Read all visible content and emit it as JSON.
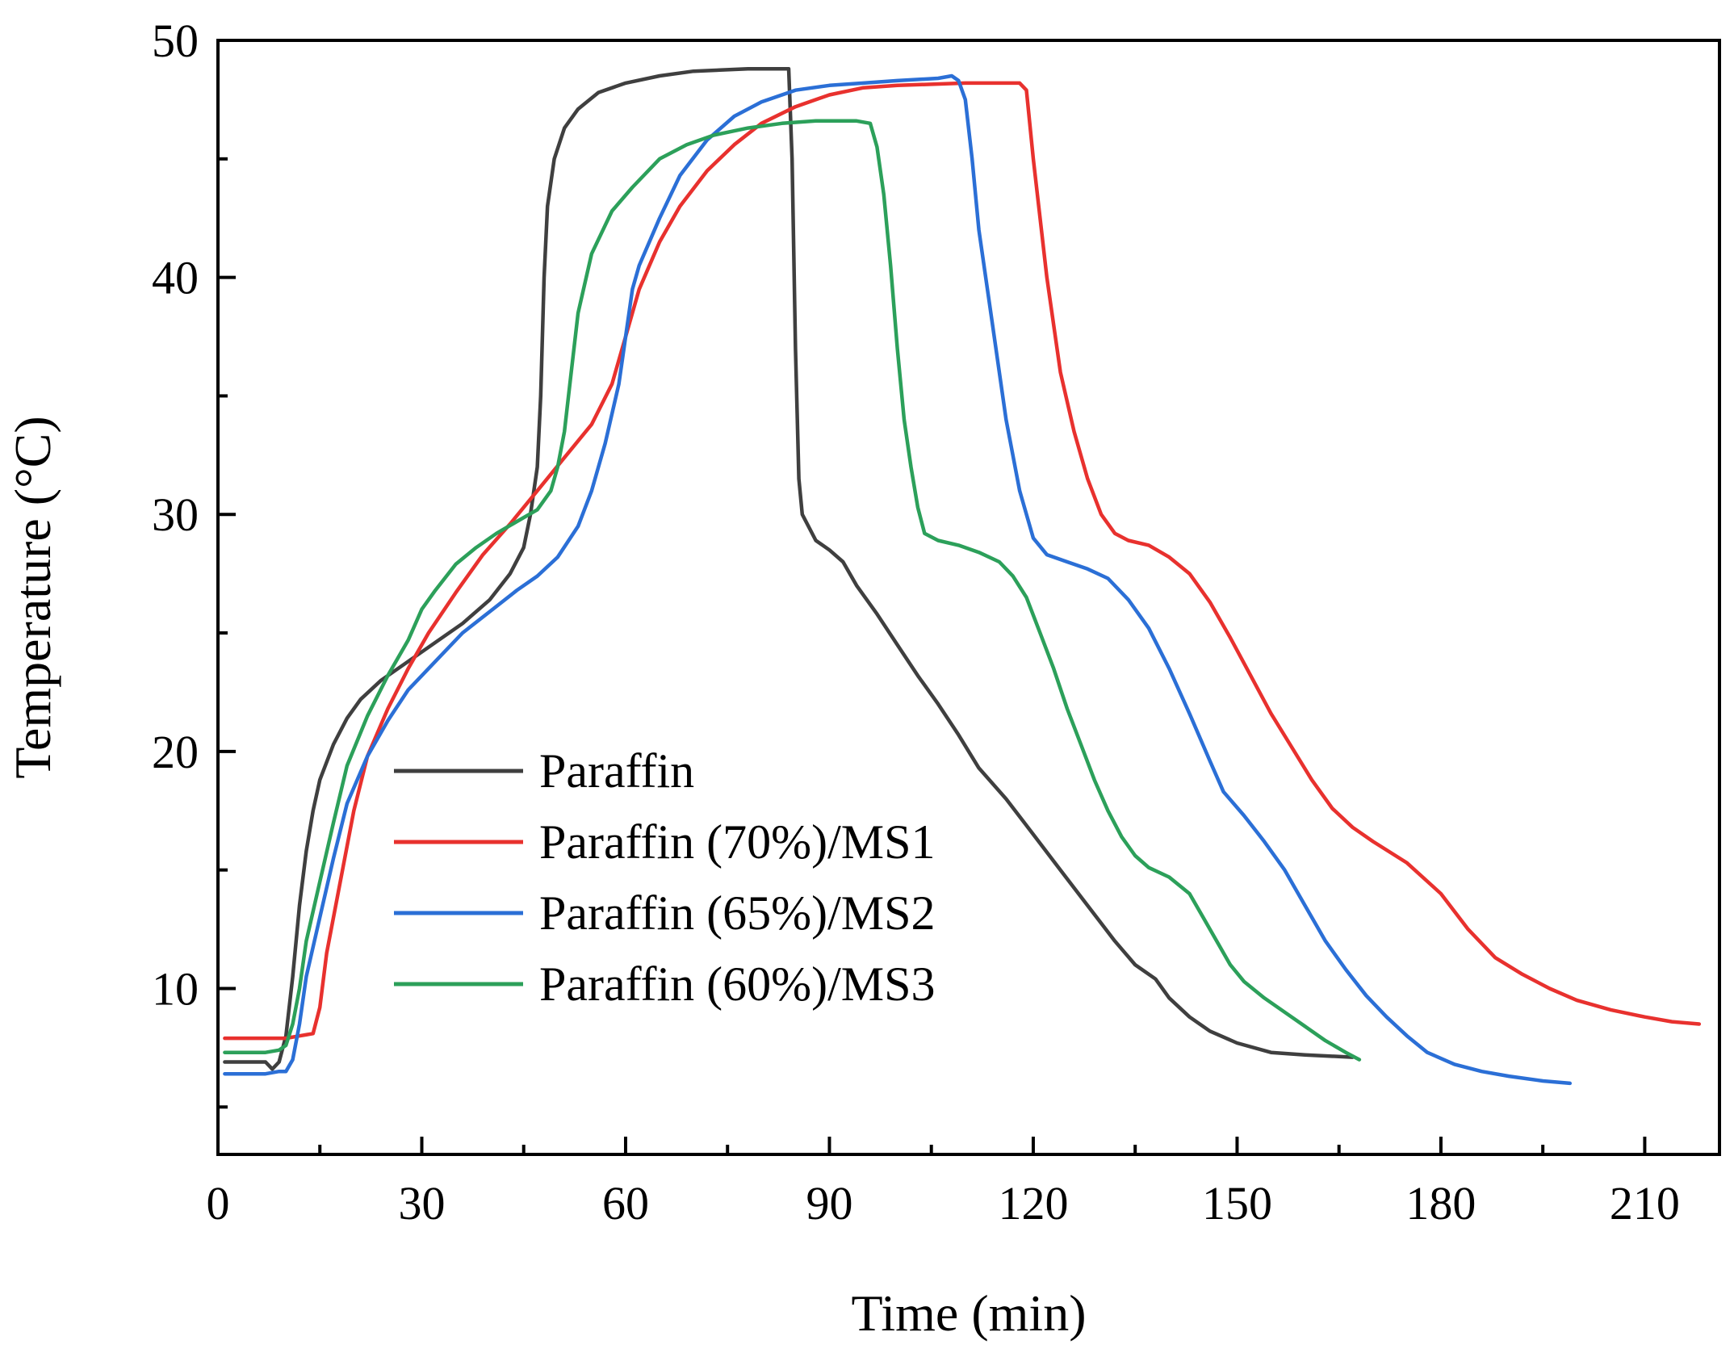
{
  "chart_data": {
    "type": "line",
    "title": "",
    "xlabel": "Time (min)",
    "ylabel": "Temperature (°C)",
    "xlim": [
      0,
      221
    ],
    "ylim": [
      3,
      50
    ],
    "xticks": [
      0,
      30,
      60,
      90,
      120,
      150,
      180,
      210
    ],
    "yticks": [
      10,
      20,
      30,
      40,
      50
    ],
    "x_minor_step": 15,
    "y_minor_step": 5,
    "grid": false,
    "legend_position": "lower-left",
    "series": [
      {
        "name": "Paraffin",
        "color": "#3f3f3f",
        "points": [
          [
            1,
            6.9
          ],
          [
            7,
            6.9
          ],
          [
            8,
            6.6
          ],
          [
            9,
            6.9
          ],
          [
            10,
            8
          ],
          [
            11,
            10.5
          ],
          [
            12,
            13.5
          ],
          [
            13,
            15.8
          ],
          [
            14,
            17.5
          ],
          [
            15,
            18.8
          ],
          [
            17,
            20.3
          ],
          [
            19,
            21.4
          ],
          [
            21,
            22.2
          ],
          [
            24,
            23
          ],
          [
            28,
            23.8
          ],
          [
            32,
            24.6
          ],
          [
            36,
            25.4
          ],
          [
            40,
            26.4
          ],
          [
            43,
            27.5
          ],
          [
            45,
            28.6
          ],
          [
            46,
            30
          ],
          [
            47,
            32
          ],
          [
            47.5,
            35
          ],
          [
            48,
            40
          ],
          [
            48.5,
            43
          ],
          [
            49.5,
            45
          ],
          [
            51,
            46.3
          ],
          [
            53,
            47.1
          ],
          [
            56,
            47.8
          ],
          [
            60,
            48.2
          ],
          [
            65,
            48.5
          ],
          [
            70,
            48.7
          ],
          [
            78,
            48.8
          ],
          [
            84,
            48.8
          ],
          [
            84.5,
            45
          ],
          [
            85,
            37
          ],
          [
            85.5,
            31.5
          ],
          [
            86,
            30
          ],
          [
            88,
            28.9
          ],
          [
            90,
            28.5
          ],
          [
            92,
            28
          ],
          [
            94,
            27
          ],
          [
            97,
            25.8
          ],
          [
            100,
            24.5
          ],
          [
            103,
            23.2
          ],
          [
            106,
            22
          ],
          [
            109,
            20.7
          ],
          [
            112,
            19.3
          ],
          [
            116,
            18
          ],
          [
            120,
            16.5
          ],
          [
            124,
            15
          ],
          [
            128,
            13.5
          ],
          [
            132,
            12
          ],
          [
            135,
            11
          ],
          [
            138,
            10.4
          ],
          [
            140,
            9.6
          ],
          [
            143,
            8.8
          ],
          [
            146,
            8.2
          ],
          [
            150,
            7.7
          ],
          [
            155,
            7.3
          ],
          [
            160,
            7.2
          ],
          [
            167,
            7.1
          ]
        ]
      },
      {
        "name": "Paraffin (70%)/MS1",
        "color": "#e8312e",
        "points": [
          [
            1,
            7.9
          ],
          [
            7,
            7.9
          ],
          [
            9,
            7.9
          ],
          [
            10,
            7.9
          ],
          [
            12,
            8
          ],
          [
            14,
            8.1
          ],
          [
            15,
            9.2
          ],
          [
            16,
            11.5
          ],
          [
            18,
            14.5
          ],
          [
            20,
            17.5
          ],
          [
            22,
            19.8
          ],
          [
            25,
            21.8
          ],
          [
            28,
            23.5
          ],
          [
            31,
            25
          ],
          [
            35,
            26.7
          ],
          [
            39,
            28.3
          ],
          [
            43,
            29.6
          ],
          [
            47,
            31
          ],
          [
            51,
            32.4
          ],
          [
            55,
            33.8
          ],
          [
            58,
            35.5
          ],
          [
            60,
            37.5
          ],
          [
            62,
            39.5
          ],
          [
            65,
            41.5
          ],
          [
            68,
            43
          ],
          [
            72,
            44.5
          ],
          [
            76,
            45.6
          ],
          [
            80,
            46.5
          ],
          [
            85,
            47.2
          ],
          [
            90,
            47.7
          ],
          [
            95,
            48
          ],
          [
            100,
            48.1
          ],
          [
            110,
            48.2
          ],
          [
            118,
            48.2
          ],
          [
            119,
            47.9
          ],
          [
            120,
            45
          ],
          [
            122,
            40
          ],
          [
            124,
            36
          ],
          [
            126,
            33.5
          ],
          [
            128,
            31.5
          ],
          [
            130,
            30
          ],
          [
            132,
            29.2
          ],
          [
            134,
            28.9
          ],
          [
            137,
            28.7
          ],
          [
            140,
            28.2
          ],
          [
            143,
            27.5
          ],
          [
            146,
            26.3
          ],
          [
            149,
            24.8
          ],
          [
            152,
            23.2
          ],
          [
            155,
            21.6
          ],
          [
            158,
            20.2
          ],
          [
            161,
            18.8
          ],
          [
            164,
            17.6
          ],
          [
            167,
            16.8
          ],
          [
            170,
            16.2
          ],
          [
            175,
            15.3
          ],
          [
            180,
            14
          ],
          [
            184,
            12.5
          ],
          [
            188,
            11.3
          ],
          [
            192,
            10.6
          ],
          [
            196,
            10
          ],
          [
            200,
            9.5
          ],
          [
            205,
            9.1
          ],
          [
            210,
            8.8
          ],
          [
            214,
            8.6
          ],
          [
            218,
            8.5
          ]
        ]
      },
      {
        "name": "Paraffin (65%)/MS2",
        "color": "#2b6fd6",
        "points": [
          [
            1,
            6.4
          ],
          [
            7,
            6.4
          ],
          [
            9,
            6.5
          ],
          [
            10,
            6.5
          ],
          [
            11,
            7
          ],
          [
            12,
            8.5
          ],
          [
            13,
            10.5
          ],
          [
            15,
            13
          ],
          [
            17,
            15.5
          ],
          [
            19,
            17.8
          ],
          [
            22,
            19.8
          ],
          [
            25,
            21.3
          ],
          [
            28,
            22.6
          ],
          [
            32,
            23.8
          ],
          [
            36,
            25
          ],
          [
            40,
            25.9
          ],
          [
            44,
            26.8
          ],
          [
            47,
            27.4
          ],
          [
            50,
            28.2
          ],
          [
            53,
            29.5
          ],
          [
            55,
            31
          ],
          [
            57,
            33
          ],
          [
            59,
            35.5
          ],
          [
            60,
            37.5
          ],
          [
            61,
            39.5
          ],
          [
            62,
            40.5
          ],
          [
            65,
            42.5
          ],
          [
            68,
            44.3
          ],
          [
            72,
            45.8
          ],
          [
            76,
            46.8
          ],
          [
            80,
            47.4
          ],
          [
            85,
            47.9
          ],
          [
            90,
            48.1
          ],
          [
            95,
            48.2
          ],
          [
            100,
            48.3
          ],
          [
            106,
            48.4
          ],
          [
            108,
            48.5
          ],
          [
            109,
            48.3
          ],
          [
            110,
            47.5
          ],
          [
            111,
            45
          ],
          [
            112,
            42
          ],
          [
            114,
            38
          ],
          [
            116,
            34
          ],
          [
            118,
            31
          ],
          [
            120,
            29
          ],
          [
            122,
            28.3
          ],
          [
            125,
            28
          ],
          [
            128,
            27.7
          ],
          [
            131,
            27.3
          ],
          [
            134,
            26.4
          ],
          [
            137,
            25.2
          ],
          [
            140,
            23.5
          ],
          [
            143,
            21.6
          ],
          [
            146,
            19.6
          ],
          [
            148,
            18.3
          ],
          [
            151,
            17.3
          ],
          [
            154,
            16.2
          ],
          [
            157,
            15
          ],
          [
            160,
            13.5
          ],
          [
            163,
            12
          ],
          [
            166,
            10.8
          ],
          [
            169,
            9.7
          ],
          [
            172,
            8.8
          ],
          [
            175,
            8
          ],
          [
            178,
            7.3
          ],
          [
            182,
            6.8
          ],
          [
            186,
            6.5
          ],
          [
            190,
            6.3
          ],
          [
            195,
            6.1
          ],
          [
            199,
            6
          ]
        ]
      },
      {
        "name": "Paraffin (60%)/MS3",
        "color": "#2ca05a",
        "points": [
          [
            1,
            7.3
          ],
          [
            7,
            7.3
          ],
          [
            9,
            7.4
          ],
          [
            10,
            7.6
          ],
          [
            11,
            8.5
          ],
          [
            12,
            10
          ],
          [
            13,
            12
          ],
          [
            15,
            14.5
          ],
          [
            17,
            17
          ],
          [
            19,
            19.4
          ],
          [
            22,
            21.5
          ],
          [
            25,
            23.2
          ],
          [
            28,
            24.7
          ],
          [
            30,
            26
          ],
          [
            32,
            26.8
          ],
          [
            35,
            27.9
          ],
          [
            38,
            28.6
          ],
          [
            41,
            29.2
          ],
          [
            44,
            29.7
          ],
          [
            47,
            30.2
          ],
          [
            49,
            31
          ],
          [
            50,
            32
          ],
          [
            51,
            33.5
          ],
          [
            52,
            36
          ],
          [
            53,
            38.5
          ],
          [
            55,
            41
          ],
          [
            58,
            42.8
          ],
          [
            61,
            43.8
          ],
          [
            65,
            45
          ],
          [
            69,
            45.6
          ],
          [
            73,
            46
          ],
          [
            78,
            46.3
          ],
          [
            83,
            46.5
          ],
          [
            88,
            46.6
          ],
          [
            94,
            46.6
          ],
          [
            96,
            46.5
          ],
          [
            97,
            45.5
          ],
          [
            98,
            43.5
          ],
          [
            99,
            40.5
          ],
          [
            100,
            37
          ],
          [
            101,
            34
          ],
          [
            102,
            32
          ],
          [
            103,
            30.3
          ],
          [
            104,
            29.2
          ],
          [
            106,
            28.9
          ],
          [
            109,
            28.7
          ],
          [
            112,
            28.4
          ],
          [
            115,
            28
          ],
          [
            117,
            27.4
          ],
          [
            119,
            26.5
          ],
          [
            121,
            25
          ],
          [
            123,
            23.5
          ],
          [
            125,
            21.8
          ],
          [
            127,
            20.3
          ],
          [
            129,
            18.8
          ],
          [
            131,
            17.5
          ],
          [
            133,
            16.4
          ],
          [
            135,
            15.6
          ],
          [
            137,
            15.1
          ],
          [
            140,
            14.7
          ],
          [
            143,
            14
          ],
          [
            145,
            13
          ],
          [
            147,
            12
          ],
          [
            149,
            11
          ],
          [
            151,
            10.3
          ],
          [
            154,
            9.6
          ],
          [
            157,
            9
          ],
          [
            160,
            8.4
          ],
          [
            163,
            7.8
          ],
          [
            166,
            7.3
          ],
          [
            168,
            7
          ]
        ]
      }
    ]
  }
}
